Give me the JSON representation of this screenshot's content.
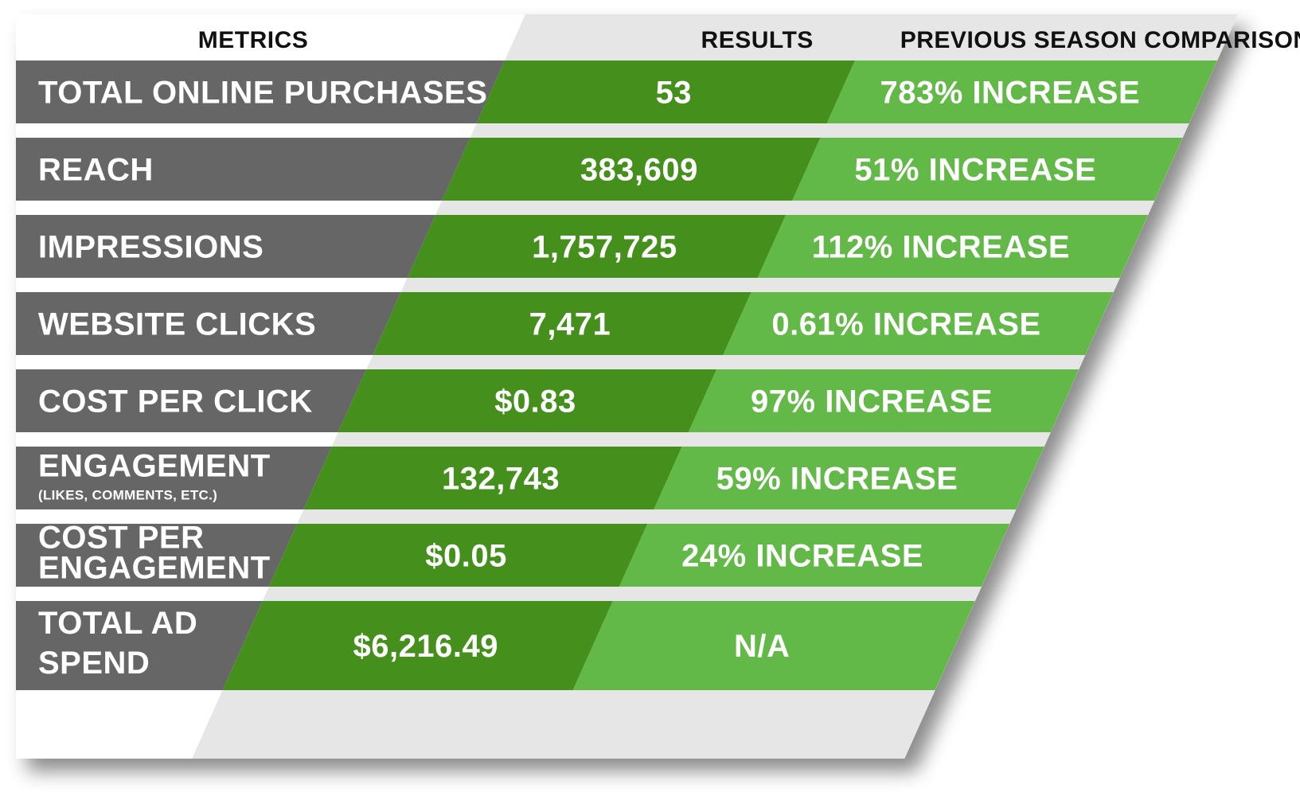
{
  "headers": {
    "metrics": "METRICS",
    "results": "RESULTS",
    "comparison": "PREVIOUS SEASON COMPARISON"
  },
  "rows": [
    {
      "metric": [
        "TOTAL ONLINE PURCHASES"
      ],
      "result": "53",
      "comparison": "783% INCREASE"
    },
    {
      "metric": [
        "REACH"
      ],
      "result": "383,609",
      "comparison": "51% INCREASE"
    },
    {
      "metric": [
        "IMPRESSIONS"
      ],
      "result": "1,757,725",
      "comparison": "112% INCREASE"
    },
    {
      "metric": [
        "WEBSITE CLICKS"
      ],
      "result": "7,471",
      "comparison": "0.61% INCREASE"
    },
    {
      "metric": [
        "COST PER CLICK"
      ],
      "result": "$0.83",
      "comparison": "97% INCREASE"
    },
    {
      "metric": [
        "ENGAGEMENT"
      ],
      "metric_note": "(LIKES, COMMENTS, ETC.)",
      "result": "132,743",
      "comparison": "59%  INCREASE"
    },
    {
      "metric": [
        "COST PER",
        "ENGAGEMENT"
      ],
      "result": "$0.05",
      "comparison": "24% INCREASE"
    },
    {
      "metric": [
        "TOTAL AD",
        "SPEND"
      ],
      "result": "$6,216.49",
      "comparison": "N/A"
    }
  ],
  "colors": {
    "metric_band": "#666666",
    "results_band": "#44901e",
    "comparison_band": "#63b946",
    "separator": "#e6e6e6",
    "header_text": "#111111",
    "cell_text": "#ffffff"
  }
}
